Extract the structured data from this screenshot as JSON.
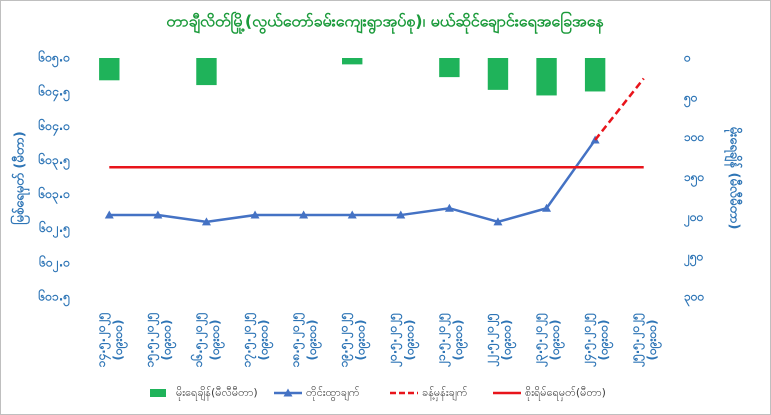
{
  "chart_data": {
    "type": "combo",
    "title": "တာချီလိတ်မြို့(လွယ်တော်ခမ်းကျေးရွာအုပ်စု)၊ မယ်ဆိုင်ချောင်းရေအခြေအနေ",
    "y_label": "မြစ်ရေမှတ် (မီတာ)",
    "y2_label": "မိုးရေချိန် (မီလီမီတာ)",
    "categories": [
      "၁၄.၅.၂၀၂၅",
      "၁၅.၅.၂၀၂၅",
      "၁၆.၅.၂၀၂၅",
      "၁၇.၅.၂၀၂၅",
      "၁၈.၅.၂၀၂၅",
      "၁၉.၅.၂၀၂၅",
      "၂၀.၅.၂၀၂၅",
      "၂၁.၅.၂၀၂၅",
      "၂၂.၅.၂၀၂၅",
      "၂၃.၅.၂၀၂၅",
      "၂၄.၅.၂၀၂၅",
      "၂၅.၅.၂၀၂၅"
    ],
    "category_times": [
      "(၀၉း၀၀)",
      "(၀၉း၀၀)",
      "(၀၉း၀၀)",
      "(၀၉း၀၀)",
      "(၀၉း၀၀)",
      "(၀၉း၀၀)",
      "(၀၉း၀၀)",
      "(၀၉း၀၀)",
      "(၀၉း၀၀)",
      "(၀၉း၀၀)",
      "(၀၉း၀၀)",
      "(၀၉း၀၀)"
    ],
    "ylim": [
      601.5,
      605.0
    ],
    "yticks": [
      {
        "value": 601.5,
        "label": "၆၀၁.၅"
      },
      {
        "value": 602.0,
        "label": "၆၀၂.၀"
      },
      {
        "value": 602.5,
        "label": "၆၀၂.၅"
      },
      {
        "value": 603.0,
        "label": "၆၀၃.၀"
      },
      {
        "value": 603.5,
        "label": "၆၀၃.၅"
      },
      {
        "value": 604.0,
        "label": "၆၀၄.၀"
      },
      {
        "value": 604.5,
        "label": "၆၀၄.၅"
      },
      {
        "value": 605.0,
        "label": "၆၀၅.၀"
      }
    ],
    "y2lim": [
      300,
      0
    ],
    "y2ticks": [
      {
        "value": 0,
        "label": "၀"
      },
      {
        "value": 50,
        "label": "၅၀"
      },
      {
        "value": 100,
        "label": "၁၀၀"
      },
      {
        "value": 150,
        "label": "၁၅၀"
      },
      {
        "value": 200,
        "label": "၂၀၀"
      },
      {
        "value": 250,
        "label": "၂၅၀"
      },
      {
        "value": 300,
        "label": "၃၀၀"
      }
    ],
    "series": [
      {
        "name": "မိုးရေချိန်(မီလီမီတာ)",
        "type": "bar",
        "axis": "y2",
        "color": "#1fb35a",
        "values": [
          28,
          null,
          34,
          null,
          null,
          8,
          null,
          24,
          40,
          47,
          42,
          null
        ]
      },
      {
        "name": "တိုင်းထွာချက်",
        "type": "line",
        "marker": "triangle",
        "color": "#4472c4",
        "values": [
          602.7,
          602.7,
          602.6,
          602.7,
          602.7,
          602.7,
          602.7,
          602.8,
          602.6,
          602.8,
          603.8,
          null
        ]
      },
      {
        "name": "ခန့်မှန်းချက်",
        "type": "line",
        "dashed": true,
        "color": "#e8141b",
        "values": [
          null,
          null,
          null,
          null,
          null,
          null,
          null,
          null,
          null,
          null,
          603.8,
          604.7
        ]
      },
      {
        "name": "စိုးရိမ်ရေမှတ်(မီတာ)",
        "type": "line",
        "color": "#e8141b",
        "values": [
          603.4,
          603.4,
          603.4,
          603.4,
          603.4,
          603.4,
          603.4,
          603.4,
          603.4,
          603.4,
          603.4,
          603.4
        ]
      }
    ]
  }
}
